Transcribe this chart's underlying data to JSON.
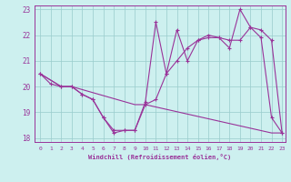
{
  "xlabel": "Windchill (Refroidissement éolien,°C)",
  "bg_color": "#cdf0ef",
  "line_color": "#993399",
  "grid_color": "#99cccc",
  "line1_x": [
    0,
    1,
    2,
    3,
    4,
    5,
    6,
    7,
    8,
    9,
    10,
    11,
    12,
    13,
    14,
    15,
    16,
    17,
    18,
    19,
    20,
    21,
    22,
    23
  ],
  "line1_y": [
    20.5,
    20.1,
    20.0,
    20.0,
    19.7,
    19.5,
    18.8,
    18.2,
    18.3,
    18.3,
    19.4,
    22.5,
    20.5,
    22.2,
    21.0,
    21.8,
    22.0,
    21.9,
    21.5,
    23.0,
    22.3,
    21.9,
    18.8,
    18.2
  ],
  "line2_x": [
    0,
    2,
    3,
    4,
    5,
    6,
    7,
    8,
    9,
    10,
    11,
    12,
    13,
    14,
    15,
    16,
    17,
    18,
    19,
    20,
    21,
    22,
    23
  ],
  "line2_y": [
    20.5,
    20.0,
    20.0,
    19.7,
    19.5,
    18.8,
    18.3,
    18.3,
    18.3,
    19.3,
    19.5,
    20.5,
    21.0,
    21.5,
    21.8,
    21.9,
    21.9,
    21.8,
    21.8,
    22.3,
    22.2,
    21.8,
    18.2
  ],
  "line3_x": [
    0,
    2,
    3,
    9,
    10,
    22,
    23
  ],
  "line3_y": [
    20.5,
    20.0,
    20.0,
    19.3,
    19.3,
    18.2,
    18.2
  ],
  "xlim": [
    -0.5,
    23.3
  ],
  "ylim": [
    17.85,
    23.15
  ],
  "xticks": [
    0,
    1,
    2,
    3,
    4,
    5,
    6,
    7,
    8,
    9,
    10,
    11,
    12,
    13,
    14,
    15,
    16,
    17,
    18,
    19,
    20,
    21,
    22,
    23
  ],
  "yticks": [
    18,
    19,
    20,
    21,
    22,
    23
  ]
}
